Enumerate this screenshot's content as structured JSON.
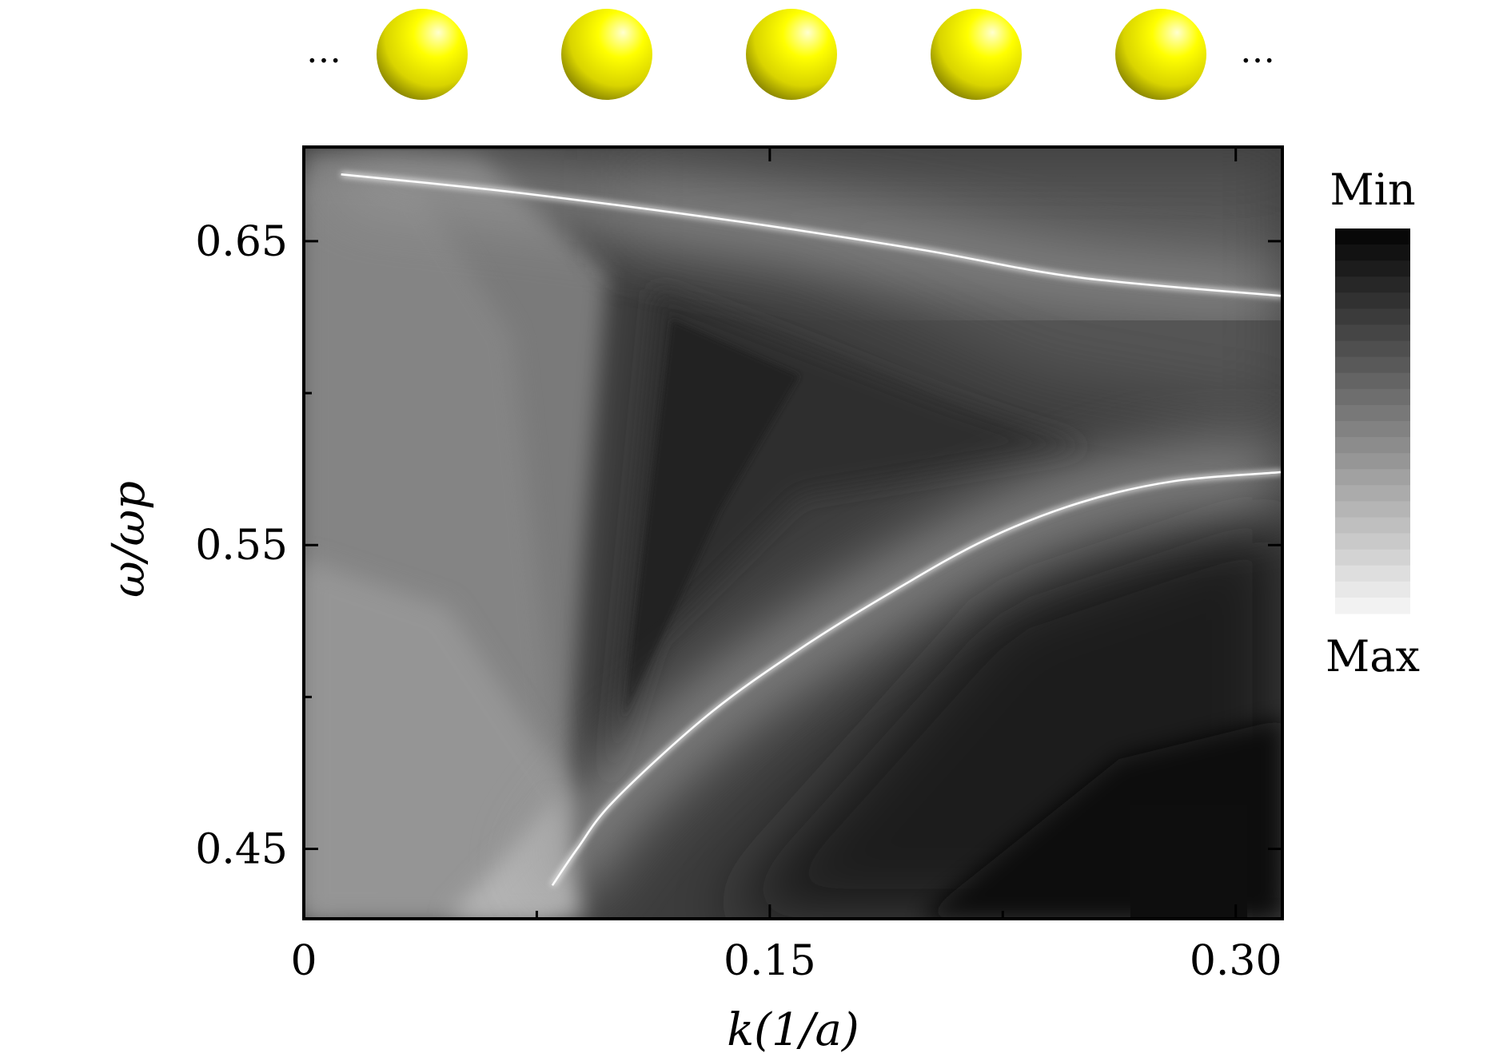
{
  "chart_data": {
    "type": "heatmap",
    "title": "",
    "xlabel": "k(1/a)",
    "ylabel": "ω/ωp",
    "xlim": [
      0,
      0.315
    ],
    "ylim": [
      0.427,
      0.681
    ],
    "x_ticks": [
      {
        "value": 0,
        "label": "0"
      },
      {
        "value": 0.15,
        "label": "0.15"
      },
      {
        "value": 0.3,
        "label": "0.30"
      }
    ],
    "x_minor_ticks": [
      0.075,
      0.225
    ],
    "y_ticks": [
      {
        "value": 0.45,
        "label": "0.45"
      },
      {
        "value": 0.55,
        "label": "0.55"
      },
      {
        "value": 0.65,
        "label": "0.65"
      }
    ],
    "y_minor_ticks": [
      0.5,
      0.6
    ],
    "colorbar": {
      "top_label": "Min",
      "bottom_label": "Max",
      "colormap": "gray"
    },
    "bands": [
      {
        "name": "upper",
        "points": [
          [
            0.012,
            0.672
          ],
          [
            0.06,
            0.667
          ],
          [
            0.1,
            0.662
          ],
          [
            0.15,
            0.655
          ],
          [
            0.2,
            0.647
          ],
          [
            0.25,
            0.638
          ],
          [
            0.315,
            0.632
          ]
        ]
      },
      {
        "name": "lower",
        "points": [
          [
            0.08,
            0.438
          ],
          [
            0.088,
            0.45
          ],
          [
            0.1,
            0.466
          ],
          [
            0.13,
            0.494
          ],
          [
            0.16,
            0.516
          ],
          [
            0.19,
            0.535
          ],
          [
            0.22,
            0.552
          ],
          [
            0.25,
            0.564
          ],
          [
            0.28,
            0.571
          ],
          [
            0.315,
            0.574
          ]
        ]
      }
    ],
    "chain_dots": [
      "…",
      "…"
    ],
    "chain_sphere_count": 5,
    "colors": {
      "sphere": "#f2ee00",
      "band": "#ffffff",
      "background": "#ffffff"
    }
  }
}
